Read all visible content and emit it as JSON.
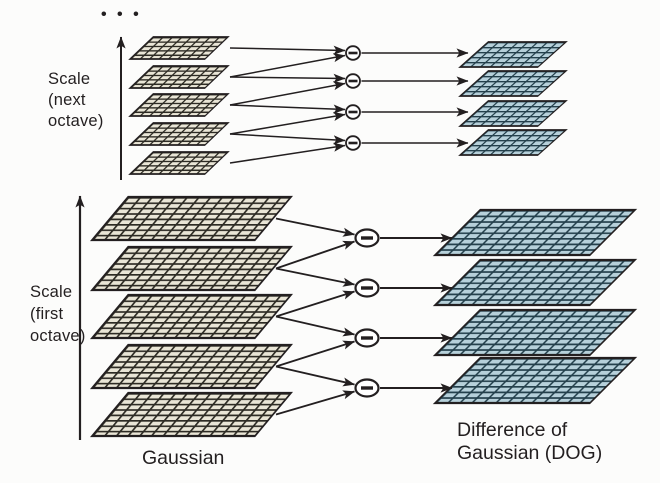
{
  "ellipsis": "• • •",
  "axes": {
    "next_octave_label": [
      "Scale",
      "(next",
      "octave)"
    ],
    "first_octave_label": [
      "Scale",
      "(first",
      "octave)"
    ]
  },
  "labels": {
    "gaussian": "Gaussian",
    "dog_line1": "Difference of",
    "dog_line2": "Gaussian (DOG)"
  },
  "operator": "−",
  "pyramid": {
    "next_octave": {
      "gaussian_images": 5,
      "dog_images": 4
    },
    "first_octave": {
      "gaussian_images": 5,
      "dog_images": 4
    }
  },
  "colors": {
    "background": "#fcfcfb",
    "ink": "#231f20",
    "gaussian_cell": "#e9e5d6",
    "gaussian_grid_line": "#2d2b24",
    "dog_cell": "#b6d0da",
    "dog_grid_line": "#24404c"
  }
}
